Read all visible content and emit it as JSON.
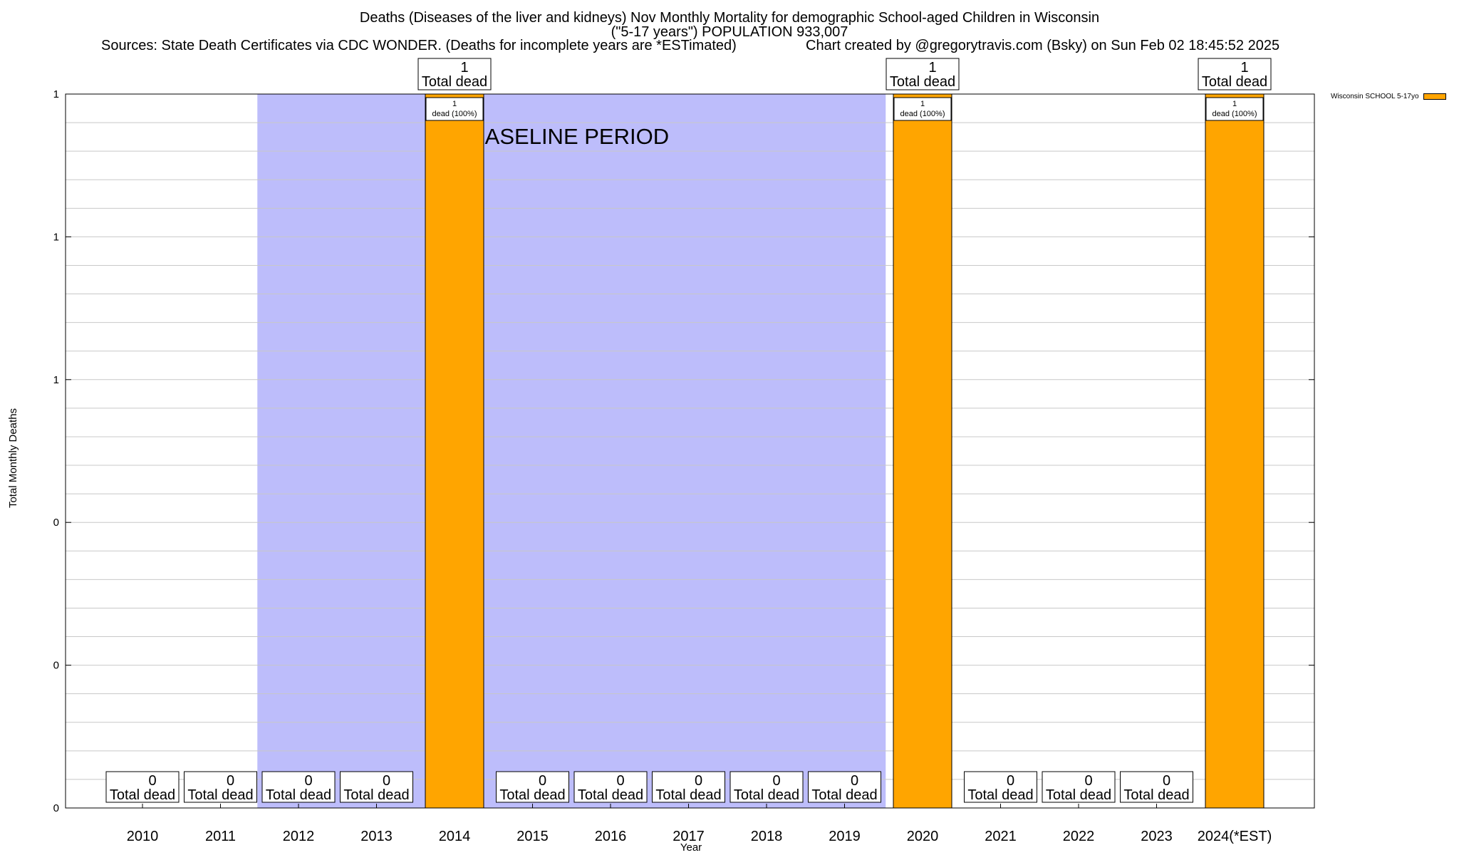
{
  "header": {
    "title_line1": "Deaths (Diseases of the liver and kidneys) Nov Monthly Mortality for demographic School-aged Children in Wisconsin",
    "title_line2": "(\"5-17 years\") POPULATION 933,007",
    "sources": "Sources: State Death Certificates via CDC WONDER. (Deaths for incomplete years are *ESTimated)",
    "credit": "Chart created by @gregorytravis.com (Bsky) on Sun Feb 02 18:45:52 2025"
  },
  "chart_data": {
    "type": "bar",
    "xlabel": "Year",
    "ylabel": "Total Monthly Deaths",
    "ylim": [
      0,
      1
    ],
    "y_tick_labels": [
      "0",
      "0",
      "0",
      "1",
      "1",
      "1"
    ],
    "grid": true,
    "legend_position": "top-right",
    "categories": [
      "2010",
      "2011",
      "2012",
      "2013",
      "2014",
      "2015",
      "2016",
      "2017",
      "2018",
      "2019",
      "2020",
      "2021",
      "2022",
      "2023",
      "2024(*EST)"
    ],
    "series": [
      {
        "name": "Wisconsin SCHOOL 5-17yo",
        "color": "#FFA500",
        "values": [
          0,
          0,
          0,
          0,
          1,
          0,
          0,
          0,
          0,
          0,
          1,
          0,
          0,
          0,
          1
        ]
      }
    ],
    "total_label_text": "Total dead",
    "bar_label_text": "dead (100%)",
    "baseline": {
      "label": "BASELINE PERIOD",
      "from": "2012",
      "to": "2019",
      "color": "#BDBDFB"
    }
  }
}
